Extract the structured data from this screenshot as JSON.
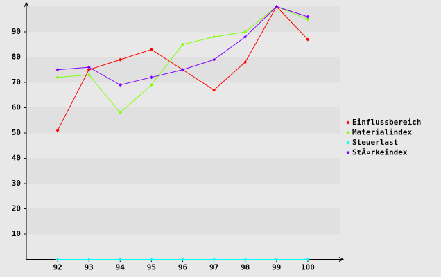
{
  "chart_data": {
    "type": "line",
    "categories": [
      "92",
      "93",
      "94",
      "95",
      "96",
      "97",
      "98",
      "99",
      "100"
    ],
    "series": [
      {
        "name": "Einflussbereich",
        "color": "#ff0000",
        "values": [
          51,
          75,
          79,
          83,
          75,
          67,
          78,
          100,
          87
        ]
      },
      {
        "name": "Materialindex",
        "color": "#80ff00",
        "values": [
          72,
          73,
          58,
          69,
          85,
          88,
          90,
          100,
          95
        ]
      },
      {
        "name": "Steuerlast",
        "color": "#00ffff",
        "values": [
          0,
          0,
          0,
          0,
          0,
          0,
          0,
          0,
          0
        ]
      },
      {
        "name": "StÃ¤rkeindex",
        "color": "#8000ff",
        "values": [
          75,
          76,
          69,
          72,
          75,
          79,
          88,
          100,
          96
        ]
      }
    ],
    "ylim": [
      0,
      100
    ],
    "yticks": [
      10,
      20,
      30,
      40,
      50,
      60,
      70,
      80,
      90
    ],
    "grid": true,
    "legend": "right"
  }
}
